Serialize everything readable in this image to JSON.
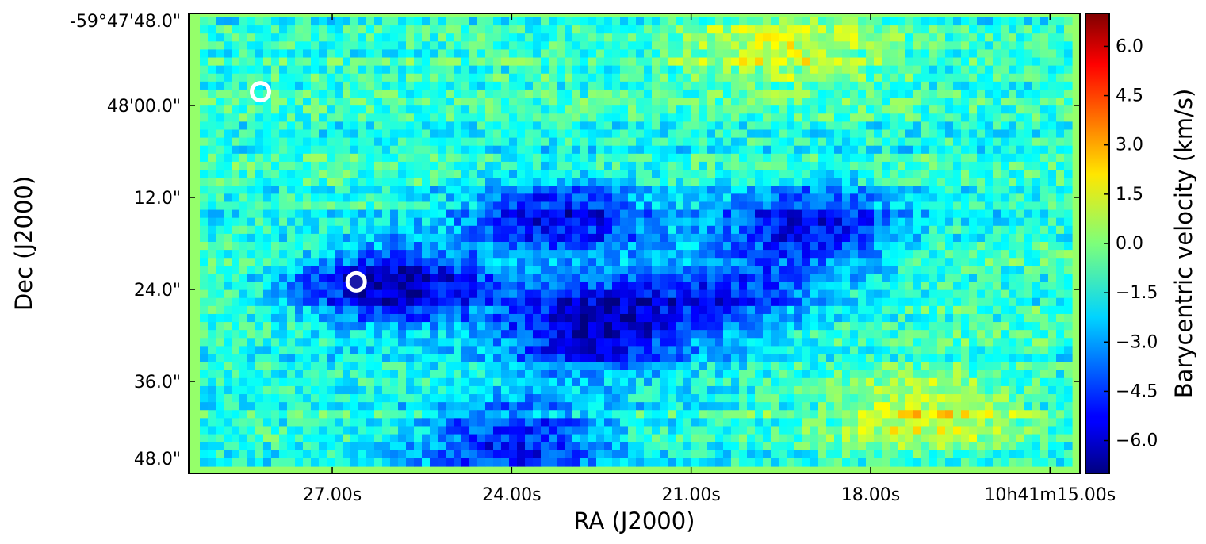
{
  "chart_data": {
    "type": "heatmap",
    "title": "",
    "xlabel": "RA (J2000)",
    "ylabel": "Dec (J2000)",
    "x_ticks": [
      {
        "label": "27.00s",
        "ra_seconds": 27.0
      },
      {
        "label": "24.00s",
        "ra_seconds": 24.0
      },
      {
        "label": "21.00s",
        "ra_seconds": 21.0
      },
      {
        "label": "18.00s",
        "ra_seconds": 18.0
      },
      {
        "label": "10h41m15.00s",
        "ra_seconds": 15.0
      }
    ],
    "x_range_ra_seconds": [
      29.4,
      14.5
    ],
    "y_ticks": [
      {
        "label": "-59°47'48.0\"",
        "dec_offset_arcsec": 0
      },
      {
        "label": "48'00.0\"",
        "dec_offset_arcsec": -12
      },
      {
        "label": "12.0\"",
        "dec_offset_arcsec": -24
      },
      {
        "label": "24.0\"",
        "dec_offset_arcsec": -36
      },
      {
        "label": "36.0\"",
        "dec_offset_arcsec": -48
      },
      {
        "label": "48.0\"",
        "dec_offset_arcsec": -60
      }
    ],
    "y_range_dec_offset_arcsec": [
      0,
      -60
    ],
    "colorbar": {
      "label": "Barycentric velocity (km/s)",
      "colormap": "jet",
      "vmin": -7.0,
      "vmax": 7.0,
      "ticks": [
        6.0,
        4.5,
        3.0,
        1.5,
        0.0,
        -1.5,
        -3.0,
        -4.5,
        -6.0
      ],
      "tick_labels": [
        "6.0",
        "4.5",
        "3.0",
        "1.5",
        "0.0",
        "−1.5",
        "−3.0",
        "−4.5",
        "−6.0"
      ]
    },
    "markers": [
      {
        "kind": "open circle",
        "ra_seconds": 28.2,
        "dec_offset_arcsec": -10.2
      },
      {
        "kind": "ring with dark center",
        "ra_seconds": 26.6,
        "dec_offset_arcsec": -35.0
      }
    ],
    "features": [
      {
        "description": "blueshifted region",
        "ra_seconds": 26.0,
        "dec_offset_arcsec": -35.5,
        "velocity_kms": -6.5
      },
      {
        "description": "blueshifted region",
        "ra_seconds": 23.2,
        "dec_offset_arcsec": -27.0,
        "velocity_kms": -5.5
      },
      {
        "description": "blueshifted region",
        "ra_seconds": 22.7,
        "dec_offset_arcsec": -41.0,
        "velocity_kms": -6.5
      },
      {
        "description": "blueshifted region",
        "ra_seconds": 24.0,
        "dec_offset_arcsec": -56.0,
        "velocity_kms": -5.0
      },
      {
        "description": "blueshifted region",
        "ra_seconds": 19.0,
        "dec_offset_arcsec": -28.0,
        "velocity_kms": -5.5
      },
      {
        "description": "blueshifted region",
        "ra_seconds": 20.5,
        "dec_offset_arcsec": -37.0,
        "velocity_kms": -4.5
      },
      {
        "description": "redshifted region",
        "ra_seconds": 17.2,
        "dec_offset_arcsec": -52.0,
        "velocity_kms": 1.5
      },
      {
        "description": "redshifted region",
        "ra_seconds": 19.5,
        "dec_offset_arcsec": -4.0,
        "velocity_kms": 1.2
      }
    ],
    "background_velocity_kms": -1.2,
    "border_velocity_kms": 0.3
  },
  "colors": {
    "marker": "#ffffff",
    "marker_center": "#1a1aa8"
  }
}
